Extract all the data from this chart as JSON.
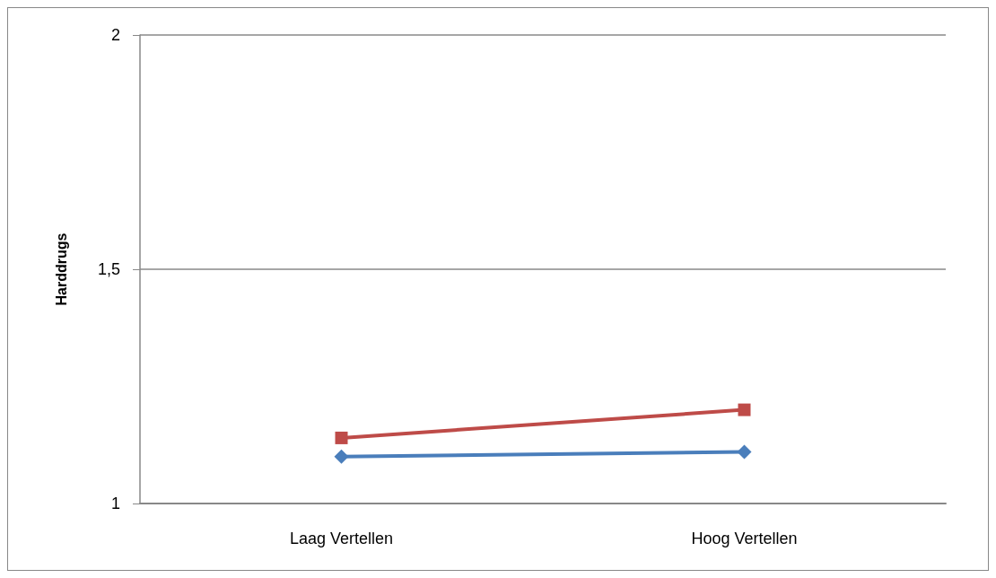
{
  "chart_data": {
    "type": "line",
    "ylabel": "Harddrugs",
    "categories": [
      "Laag Vertellen",
      "Hoog Vertellen"
    ],
    "series": [
      {
        "color": "#4a7ebb",
        "marker": "diamond",
        "values": [
          1.1,
          1.11
        ]
      },
      {
        "color": "#be4b48",
        "marker": "square",
        "values": [
          1.14,
          1.2
        ]
      }
    ],
    "ylim": [
      1,
      2
    ],
    "yticks": [
      1,
      {
        "value": 1.5,
        "label": "1,5"
      },
      2
    ],
    "grid": "y",
    "line_style": "solid"
  }
}
